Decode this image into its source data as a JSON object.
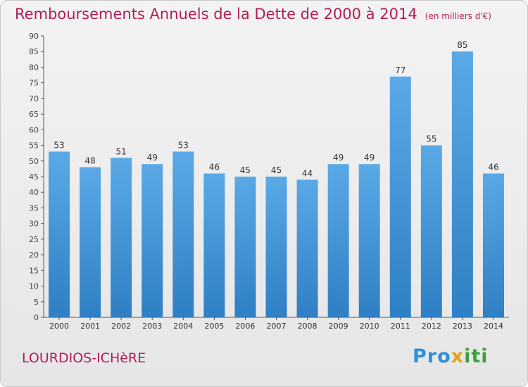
{
  "chart_data": {
    "type": "bar",
    "title": "Remboursements Annuels de la Dette de 2000 à 2014",
    "subtitle": "(en milliers d'€)",
    "categories": [
      "2000",
      "2001",
      "2002",
      "2003",
      "2004",
      "2005",
      "2006",
      "2007",
      "2008",
      "2009",
      "2010",
      "2011",
      "2012",
      "2013",
      "2014"
    ],
    "values": [
      53,
      48,
      51,
      49,
      53,
      46,
      45,
      45,
      44,
      49,
      49,
      77,
      55,
      85,
      46
    ],
    "ylim": [
      0,
      90
    ],
    "yticks": [
      0,
      5,
      10,
      15,
      20,
      25,
      30,
      35,
      40,
      45,
      50,
      55,
      60,
      65,
      70,
      75,
      80,
      85,
      90
    ],
    "grid": false,
    "bar_color": "#5aa9e6",
    "bar_color_dark": "#2f7fc4",
    "title_color": "#b21d5a"
  },
  "footer": {
    "commune": "LOURDIOS-ICHèRE",
    "logo_parts": [
      "Pro",
      "x",
      "iti"
    ]
  }
}
